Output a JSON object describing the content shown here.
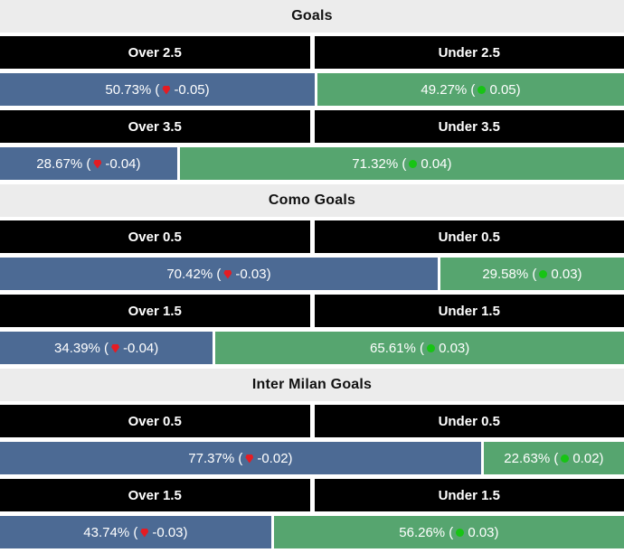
{
  "colors": {
    "over_bar": "#4c6a94",
    "under_bar": "#56a56f",
    "decrease_dot": "#e51c23",
    "increase_dot": "#17c414",
    "header_bg": "#000000",
    "header_text": "#ffffff",
    "title_bg": "#ececec",
    "title_text": "#111111",
    "bar_text": "#ffffff",
    "page_bg": "#ffffff"
  },
  "chart_data": {
    "type": "bar",
    "unit": "%",
    "legend_position": "none",
    "groups": [
      {
        "title": "Goals",
        "markets": [
          {
            "over_label": "Over 2.5",
            "under_label": "Under 2.5",
            "over_pct": 50.73,
            "over_change": -0.05,
            "under_pct": 49.27,
            "under_change": 0.05,
            "over_text": "50.73% (",
            "over_change_text": "-0.05)",
            "under_text": "49.27% (",
            "under_change_text": "0.05)"
          },
          {
            "over_label": "Over 3.5",
            "under_label": "Under 3.5",
            "over_pct": 28.67,
            "over_change": -0.04,
            "under_pct": 71.32,
            "under_change": 0.04,
            "over_text": "28.67% (",
            "over_change_text": "-0.04)",
            "under_text": "71.32% (",
            "under_change_text": "0.04)"
          }
        ]
      },
      {
        "title": "Como Goals",
        "markets": [
          {
            "over_label": "Over 0.5",
            "under_label": "Under 0.5",
            "over_pct": 70.42,
            "over_change": -0.03,
            "under_pct": 29.58,
            "under_change": 0.03,
            "over_text": "70.42% (",
            "over_change_text": "-0.03)",
            "under_text": "29.58% (",
            "under_change_text": "0.03)"
          },
          {
            "over_label": "Over 1.5",
            "under_label": "Under 1.5",
            "over_pct": 34.39,
            "over_change": -0.04,
            "under_pct": 65.61,
            "under_change": 0.03,
            "over_text": "34.39% (",
            "over_change_text": "-0.04)",
            "under_text": "65.61% (",
            "under_change_text": "0.03)"
          }
        ]
      },
      {
        "title": "Inter Milan Goals",
        "markets": [
          {
            "over_label": "Over 0.5",
            "under_label": "Under 0.5",
            "over_pct": 77.37,
            "over_change": -0.02,
            "under_pct": 22.63,
            "under_change": 0.02,
            "over_text": "77.37% (",
            "over_change_text": "-0.02)",
            "under_text": "22.63% (",
            "under_change_text": "0.02)"
          },
          {
            "over_label": "Over 1.5",
            "under_label": "Under 1.5",
            "over_pct": 43.74,
            "over_change": -0.03,
            "under_pct": 56.26,
            "under_change": 0.03,
            "over_text": "43.74% (",
            "over_change_text": "-0.03)",
            "under_text": "56.26% (",
            "under_change_text": "0.03)"
          }
        ]
      }
    ]
  }
}
